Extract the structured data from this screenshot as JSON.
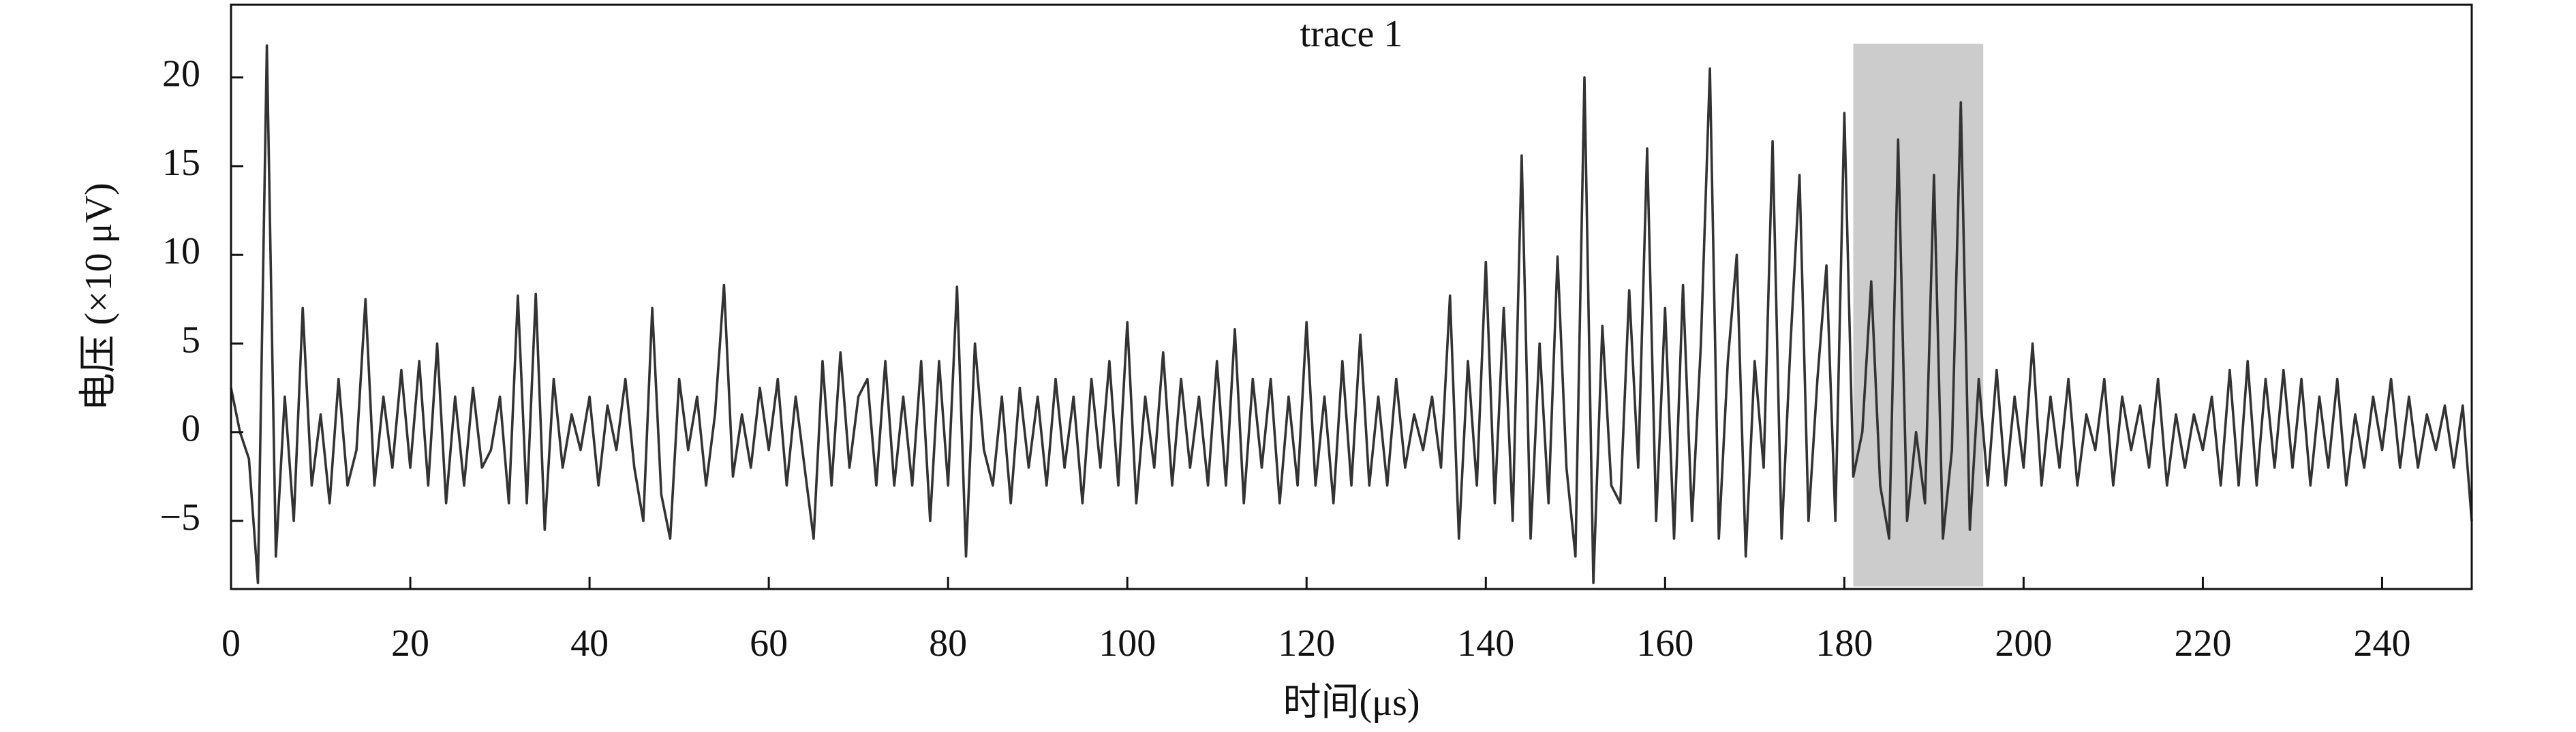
{
  "chart_data": {
    "type": "line",
    "title": "trace 1",
    "xlabel": "时间(μs)",
    "ylabel": "电压 (×10 μV)",
    "color": "#333333",
    "x": [
      0,
      1,
      2,
      3,
      4,
      5,
      6,
      7,
      8,
      9,
      10,
      11,
      12,
      13,
      14,
      15,
      16,
      17,
      18,
      19,
      20,
      21,
      22,
      23,
      24,
      25,
      26,
      27,
      28,
      29,
      30,
      31,
      32,
      33,
      34,
      35,
      36,
      37,
      38,
      39,
      40,
      41,
      42,
      43,
      44,
      45,
      46,
      47,
      48,
      49,
      50,
      51,
      52,
      53,
      54,
      55,
      56,
      57,
      58,
      59,
      60,
      61,
      62,
      63,
      64,
      65,
      66,
      67,
      68,
      69,
      70,
      71,
      72,
      73,
      74,
      75,
      76,
      77,
      78,
      79,
      80,
      81,
      82,
      83,
      84,
      85,
      86,
      87,
      88,
      89,
      90,
      91,
      92,
      93,
      94,
      95,
      96,
      97,
      98,
      99,
      100,
      101,
      102,
      103,
      104,
      105,
      106,
      107,
      108,
      109,
      110,
      111,
      112,
      113,
      114,
      115,
      116,
      117,
      118,
      119,
      120,
      121,
      122,
      123,
      124,
      125,
      126,
      127,
      128,
      129,
      130,
      131,
      132,
      133,
      134,
      135,
      136,
      137,
      138,
      139,
      140,
      141,
      142,
      143,
      144,
      145,
      146,
      147,
      148,
      149,
      150,
      151,
      152,
      153,
      154,
      155,
      156,
      157,
      158,
      159,
      160,
      161,
      162,
      163,
      164,
      165,
      166,
      167,
      168,
      169,
      170,
      171,
      172,
      173,
      174,
      175,
      176,
      177,
      178,
      179,
      180,
      181,
      182,
      183,
      184,
      185,
      186,
      187,
      188,
      189,
      190,
      191,
      192,
      193,
      194,
      195,
      196,
      197,
      198,
      199,
      200,
      201,
      202,
      203,
      204,
      205,
      206,
      207,
      208,
      209,
      210,
      211,
      212,
      213,
      214,
      215,
      216,
      217,
      218,
      219,
      220,
      221,
      222,
      223,
      224,
      225,
      226,
      227,
      228,
      229,
      230,
      231,
      232,
      233,
      234,
      235,
      236,
      237,
      238,
      239,
      240,
      241,
      242,
      243,
      244,
      245,
      246,
      247,
      248,
      249,
      250
    ],
    "values": [
      2.5,
      0,
      -1.5,
      -8.5,
      21.8,
      -7,
      2,
      -5,
      7,
      -3,
      1,
      -4,
      3,
      -3,
      -1,
      7.5,
      -3,
      2,
      -2,
      3.5,
      -2,
      4,
      -3,
      5,
      -4,
      2,
      -3,
      2.5,
      -2,
      -1,
      2,
      -4,
      7.7,
      -4,
      7.8,
      -5.5,
      3,
      -2,
      1,
      -1,
      2,
      -3,
      1.5,
      -1,
      3,
      -2,
      -5,
      7,
      -3.5,
      -6,
      3,
      -1,
      2,
      -3,
      1,
      8.3,
      -2.5,
      1,
      -2,
      2.5,
      -1,
      3,
      -3,
      2,
      -2,
      -6,
      4,
      -3,
      4.5,
      -2,
      2,
      3,
      -3,
      4,
      -3,
      2,
      -3,
      4,
      -5,
      4,
      -3,
      8.2,
      -7,
      5,
      -1,
      -3,
      2,
      -4,
      2.5,
      -2,
      2,
      -3,
      3,
      -2,
      2,
      -4,
      3,
      -2,
      4,
      -3,
      6.2,
      -4,
      2,
      -2,
      4.5,
      -3,
      3,
      -2,
      2,
      -3,
      4,
      -3,
      5.8,
      -4,
      3,
      -2,
      3,
      -4,
      2,
      -3,
      6.2,
      -3,
      2,
      -4,
      4,
      -3,
      5.5,
      -3,
      2,
      -3,
      3,
      -2,
      1,
      -1,
      2,
      -2,
      7.7,
      -6,
      4,
      -3,
      9.6,
      -4,
      7,
      -5,
      15.6,
      -6,
      5,
      -4,
      9.9,
      -2,
      -7,
      20,
      -8.5,
      6,
      -3,
      -4,
      8,
      -2,
      16,
      -5,
      7,
      -6,
      8.3,
      -5,
      5,
      20.5,
      -6,
      4,
      10,
      -7,
      4,
      -2,
      16.4,
      -6,
      5,
      14.5,
      -5,
      3,
      9.4,
      -5,
      18,
      -2.5,
      0,
      8.5,
      -3,
      -6,
      16.5,
      -5,
      0,
      -4,
      14.5,
      -6,
      -1,
      18.6,
      -5.5,
      3,
      -3,
      3.5,
      -3,
      2,
      -2,
      5,
      -3,
      2,
      -2,
      3,
      -3,
      1,
      -1,
      3,
      -3,
      2,
      -1,
      1.5,
      -2,
      3,
      -3,
      1,
      -2,
      1,
      -1,
      2,
      -3,
      3.5,
      -3,
      4,
      -3,
      3,
      -2,
      3.5,
      -2,
      3,
      -3,
      2,
      -2,
      3,
      -3,
      1,
      -2,
      2,
      -1,
      3,
      -2,
      2,
      -2,
      1,
      -1,
      1.5,
      -2,
      1.5,
      -5
    ],
    "highlight": {
      "xlim": [
        181,
        195.5
      ],
      "ylim": [
        -8.7,
        21.9
      ],
      "color": "#cccccc"
    },
    "xlim": [
      0,
      250
    ],
    "xticks": [
      0,
      20,
      40,
      60,
      80,
      100,
      120,
      140,
      160,
      180,
      200,
      220,
      240
    ],
    "ylim": [
      -8.84,
      24.1
    ],
    "yticks": [
      {
        "value": -5,
        "label": "−5"
      },
      0,
      5,
      10,
      15,
      20
    ],
    "grid": false
  }
}
